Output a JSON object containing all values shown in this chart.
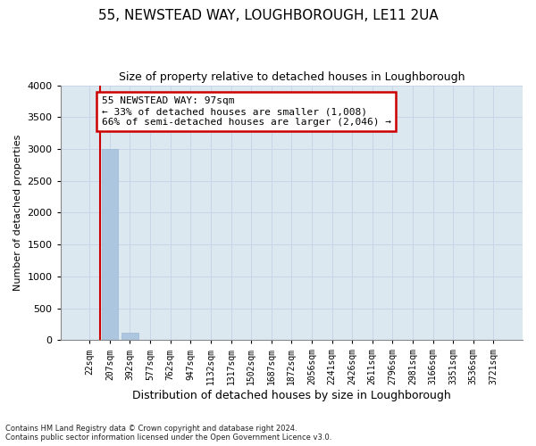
{
  "title": "55, NEWSTEAD WAY, LOUGHBOROUGH, LE11 2UA",
  "subtitle": "Size of property relative to detached houses in Loughborough",
  "xlabel": "Distribution of detached houses by size in Loughborough",
  "ylabel": "Number of detached properties",
  "categories": [
    "22sqm",
    "207sqm",
    "392sqm",
    "577sqm",
    "762sqm",
    "947sqm",
    "1132sqm",
    "1317sqm",
    "1502sqm",
    "1687sqm",
    "1872sqm",
    "2056sqm",
    "2241sqm",
    "2426sqm",
    "2611sqm",
    "2796sqm",
    "2981sqm",
    "3166sqm",
    "3351sqm",
    "3536sqm",
    "3721sqm"
  ],
  "values": [
    0,
    3000,
    120,
    0,
    0,
    0,
    0,
    0,
    0,
    0,
    0,
    0,
    0,
    0,
    0,
    0,
    0,
    0,
    0,
    0,
    0
  ],
  "bar_color": "#adc6e0",
  "bar_edge_color": "#9ab8d4",
  "ylim": [
    0,
    4000
  ],
  "yticks": [
    0,
    500,
    1000,
    1500,
    2000,
    2500,
    3000,
    3500,
    4000
  ],
  "vline_x": 0.5,
  "annotation_text_line1": "55 NEWSTEAD WAY: 97sqm",
  "annotation_text_line2": "← 33% of detached houses are smaller (1,008)",
  "annotation_text_line3": "66% of semi-detached houses are larger (2,046) →",
  "annotation_box_facecolor": "#ffffff",
  "annotation_box_edgecolor": "#cc0000",
  "grid_color": "#c8d4e8",
  "bg_color": "#dce8f0",
  "footer_line1": "Contains HM Land Registry data © Crown copyright and database right 2024.",
  "footer_line2": "Contains public sector information licensed under the Open Government Licence v3.0.",
  "title_fontsize": 11,
  "subtitle_fontsize": 9,
  "ylabel_fontsize": 8,
  "xlabel_fontsize": 9,
  "tick_fontsize": 7,
  "annot_fontsize": 8
}
